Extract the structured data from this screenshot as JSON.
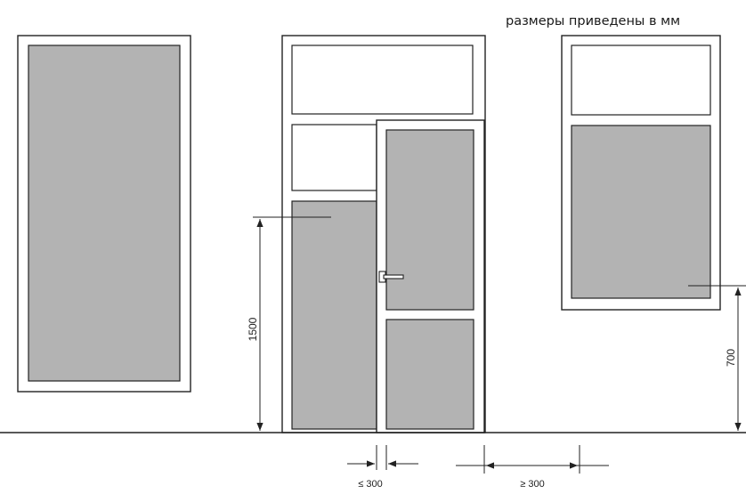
{
  "note": "размеры приведены в мм",
  "dimensions": {
    "panel_height": "1500",
    "window_height": "700",
    "handle_offset": "≤ 300",
    "door_clearance": "≥ 300"
  },
  "colors": {
    "frame": "#222222",
    "glass": "#b3b3b3",
    "background": "#ffffff"
  }
}
